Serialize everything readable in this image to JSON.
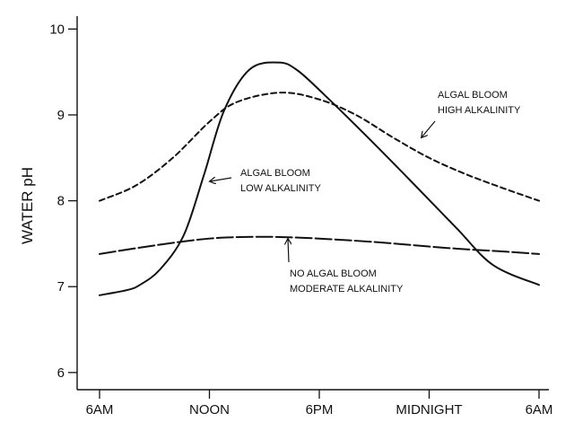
{
  "chart_data": {
    "type": "line",
    "title": "",
    "xlabel": "",
    "ylabel": "WATER pH",
    "x_categories": [
      "6AM",
      "NOON",
      "6PM",
      "MIDNIGHT",
      "6AM"
    ],
    "xlim": [
      0,
      24
    ],
    "ylim": [
      5.8,
      10.15
    ],
    "y_ticks": [
      6,
      7,
      8,
      9,
      10
    ],
    "grid": false,
    "legend": "none",
    "series": [
      {
        "name": "ALGAL BLOOM HIGH ALKALINITY",
        "line_style": "short-dash",
        "color": "#111111",
        "points": [
          [
            0,
            8.0
          ],
          [
            2,
            8.18
          ],
          [
            4,
            8.5
          ],
          [
            6,
            8.92
          ],
          [
            7.5,
            9.15
          ],
          [
            9.9,
            9.26
          ],
          [
            12,
            9.18
          ],
          [
            14,
            9.0
          ],
          [
            16,
            8.74
          ],
          [
            18,
            8.5
          ],
          [
            20,
            8.31
          ],
          [
            22,
            8.15
          ],
          [
            24,
            8.0
          ]
        ]
      },
      {
        "name": "ALGAL BLOOM LOW ALKALINITY",
        "line_style": "solid",
        "color": "#111111",
        "points": [
          [
            0,
            6.9
          ],
          [
            1.5,
            6.96
          ],
          [
            2.2,
            7.02
          ],
          [
            3.3,
            7.2
          ],
          [
            4.6,
            7.6
          ],
          [
            5.7,
            8.3
          ],
          [
            6.8,
            9.05
          ],
          [
            8.2,
            9.53
          ],
          [
            9.8,
            9.61
          ],
          [
            10.8,
            9.52
          ],
          [
            12.2,
            9.25
          ],
          [
            14.5,
            8.77
          ],
          [
            17,
            8.23
          ],
          [
            19.5,
            7.68
          ],
          [
            21.5,
            7.25
          ],
          [
            24,
            7.02
          ]
        ]
      },
      {
        "name": "NO ALGAL BLOOM MODERATE ALKALINITY",
        "line_style": "long-dash",
        "color": "#111111",
        "points": [
          [
            0,
            7.38
          ],
          [
            3,
            7.48
          ],
          [
            6,
            7.56
          ],
          [
            8.5,
            7.58
          ],
          [
            11,
            7.57
          ],
          [
            15,
            7.52
          ],
          [
            19,
            7.45
          ],
          [
            22,
            7.41
          ],
          [
            24,
            7.38
          ]
        ]
      }
    ],
    "annotations": [
      {
        "name": "high-alkalinity-label",
        "lines": [
          "ALGAL BLOOM",
          "HIGH ALKALINITY"
        ],
        "points_to_series": "ALGAL BLOOM HIGH ALKALINITY"
      },
      {
        "name": "low-alkalinity-label",
        "lines": [
          "ALGAL BLOOM",
          "LOW ALKALINITY"
        ],
        "points_to_series": "ALGAL BLOOM LOW ALKALINITY"
      },
      {
        "name": "moderate-alkalinity-label",
        "lines": [
          "NO ALGAL BLOOM",
          "MODERATE ALKALINITY"
        ],
        "points_to_series": "NO ALGAL BLOOM MODERATE ALKALINITY"
      }
    ]
  }
}
